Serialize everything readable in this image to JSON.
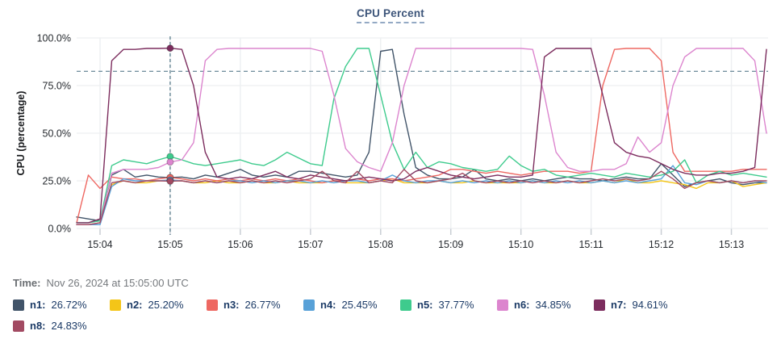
{
  "header": {
    "title": "CPU Percent"
  },
  "footer": {
    "time_label": "Time:",
    "time_value": "Nov 26, 2024 at 15:05:00 UTC"
  },
  "style_colors": {
    "title": "#3d557a",
    "grid_h": "#e8ebee",
    "grid_v": "#eef0f2",
    "tick": "#c9ced4",
    "threshold": "#5b7e8f",
    "crosshair": "#4d7383",
    "legend_text": "#1b3a66"
  },
  "chart_data": {
    "type": "line",
    "title": "CPU Percent",
    "xlabel": "",
    "ylabel": "CPU (percentage)",
    "ylim": [
      0,
      100
    ],
    "grid": true,
    "legend_position": "bottom",
    "y_ticks": [
      {
        "label": "100.0%",
        "value": 100
      },
      {
        "label": "75.0%",
        "value": 75
      },
      {
        "label": "50.0%",
        "value": 50
      },
      {
        "label": "25.0%",
        "value": 25
      },
      {
        "label": "0.0%",
        "value": 0
      }
    ],
    "x_ticks": [
      {
        "label": "15:04",
        "time": "15:04:00"
      },
      {
        "label": "15:05",
        "time": "15:05:00"
      },
      {
        "label": "15:06",
        "time": "15:06:00"
      },
      {
        "label": "15:07",
        "time": "15:07:00"
      },
      {
        "label": "15:08",
        "time": "15:08:00"
      },
      {
        "label": "15:09",
        "time": "15:09:00"
      },
      {
        "label": "15:10",
        "time": "15:10:00"
      },
      {
        "label": "15:11",
        "time": "15:11:00"
      },
      {
        "label": "15:12",
        "time": "15:12:00"
      },
      {
        "label": "15:13",
        "time": "15:13:00"
      }
    ],
    "start_time": "15:03:40",
    "interval_s": 10,
    "threshold_percent": 82.5,
    "crosshair": {
      "time": "15:05:00",
      "index": 8
    },
    "series": [
      {
        "name": "n1",
        "color": "#415469",
        "legend_value": "26.72%",
        "values": [
          6,
          5,
          4,
          28,
          31,
          27,
          28,
          27,
          26.72,
          27,
          26,
          28,
          27,
          29,
          31,
          28,
          27,
          28,
          27,
          30,
          30,
          29,
          28,
          27,
          28,
          40,
          93,
          94,
          60,
          32,
          28,
          26,
          26,
          27,
          31,
          26,
          25,
          26,
          25,
          26,
          25,
          26,
          27,
          26,
          26,
          25,
          26,
          27,
          26,
          26,
          34,
          28,
          22,
          24,
          25,
          26,
          24,
          23,
          24,
          24
        ]
      },
      {
        "name": "n2",
        "color": "#f4c518",
        "legend_value": "25.20%",
        "values": [
          2,
          2,
          3,
          23,
          25,
          24,
          24,
          25,
          25.2,
          25,
          24,
          24,
          25,
          24,
          24,
          25,
          24,
          24,
          25,
          24,
          24,
          24,
          25,
          24,
          24,
          24,
          25,
          26,
          24,
          24,
          24,
          25,
          24,
          24,
          25,
          24,
          24,
          24,
          24,
          25,
          24,
          24,
          25,
          24,
          24,
          25,
          24,
          26,
          24,
          24,
          25,
          24,
          23,
          21,
          24,
          24,
          25,
          22,
          23,
          24
        ]
      },
      {
        "name": "n3",
        "color": "#ee6862",
        "legend_value": "26.77%",
        "values": [
          3,
          28,
          21,
          27,
          26,
          26,
          25,
          26,
          26.77,
          26,
          25,
          26,
          25,
          26,
          25,
          26,
          25,
          26,
          25,
          26,
          25,
          24,
          25,
          25,
          26,
          25,
          26,
          26,
          25,
          26,
          27,
          28,
          31,
          31,
          30,
          29,
          30,
          29,
          28,
          29,
          30,
          30,
          30,
          29,
          30,
          75,
          94,
          94.5,
          94.5,
          94.5,
          88,
          40,
          30,
          30,
          30,
          30,
          30,
          31,
          31,
          31
        ]
      },
      {
        "name": "n4",
        "color": "#58a1d8",
        "legend_value": "25.45%",
        "values": [
          2,
          2,
          2,
          22,
          26,
          25,
          25,
          25,
          25.45,
          25,
          24,
          25,
          24,
          25,
          25,
          24,
          25,
          24,
          25,
          25,
          24,
          25,
          24,
          25,
          25,
          24,
          25,
          28,
          25,
          24,
          25,
          25,
          24,
          25,
          24,
          25,
          24,
          25,
          24,
          25,
          24,
          25,
          24,
          25,
          24,
          25,
          24,
          25,
          24,
          25,
          26,
          33,
          24,
          23,
          25,
          24,
          25,
          24,
          25,
          24
        ]
      },
      {
        "name": "n5",
        "color": "#3ecb8d",
        "legend_value": "37.77%",
        "values": [
          3,
          3,
          4,
          33,
          36,
          35,
          34,
          36,
          37.77,
          36,
          34,
          33,
          34,
          35,
          36,
          34,
          33,
          36,
          40,
          37,
          34,
          33,
          68,
          85,
          94.5,
          94.5,
          70,
          45,
          31,
          40,
          32,
          35,
          34,
          32,
          31,
          30,
          31,
          38,
          33,
          30,
          31,
          28,
          27,
          28,
          29,
          28,
          27,
          29,
          28,
          27,
          28,
          30,
          36,
          24,
          28,
          30,
          28,
          29,
          28,
          27
        ]
      },
      {
        "name": "n6",
        "color": "#dc85ce",
        "legend_value": "34.85%",
        "values": [
          2,
          2,
          3,
          29,
          31,
          31,
          31,
          32,
          34.85,
          36,
          45,
          88,
          94,
          94.5,
          94.5,
          94.5,
          94.5,
          94.5,
          94.5,
          94.5,
          94.5,
          93,
          70,
          42,
          35,
          32,
          30,
          45,
          75,
          94.5,
          94.5,
          94.5,
          94.5,
          94.5,
          94.5,
          94.5,
          94.5,
          94.5,
          94.5,
          94,
          70,
          40,
          32,
          30,
          30,
          31,
          31,
          34,
          48,
          40,
          45,
          75,
          90,
          94.5,
          94.5,
          94.5,
          94.5,
          94.5,
          88,
          50
        ]
      },
      {
        "name": "n7",
        "color": "#7c2d5e",
        "legend_value": "94.61%",
        "values": [
          3,
          3,
          5,
          88,
          94,
          94,
          94.5,
          94.5,
          94.61,
          94,
          75,
          40,
          27,
          26,
          27,
          26,
          28,
          30,
          27,
          26,
          28,
          27,
          26,
          25,
          26,
          27,
          26,
          25,
          26,
          30,
          32,
          30,
          28,
          27,
          26,
          27,
          28,
          27,
          27,
          28,
          90,
          94.5,
          94.5,
          94.5,
          94.5,
          70,
          45,
          40,
          38,
          37,
          34,
          31,
          29,
          28,
          28,
          29,
          29,
          30,
          32,
          94
        ]
      },
      {
        "name": "n8",
        "color": "#a24a62",
        "legend_value": "24.83%",
        "values": [
          2,
          2,
          3,
          24,
          25,
          24,
          25,
          25,
          24.83,
          25,
          24,
          25,
          24,
          25,
          24,
          25,
          24,
          25,
          24,
          25,
          26,
          30,
          25,
          24,
          30,
          24,
          25,
          24,
          31,
          25,
          24,
          25,
          26,
          29,
          25,
          24,
          25,
          24,
          25,
          24,
          25,
          24,
          25,
          24,
          25,
          26,
          25,
          26,
          25,
          26,
          30,
          26,
          21,
          24,
          25,
          24,
          25,
          24,
          25,
          25
        ]
      }
    ]
  }
}
